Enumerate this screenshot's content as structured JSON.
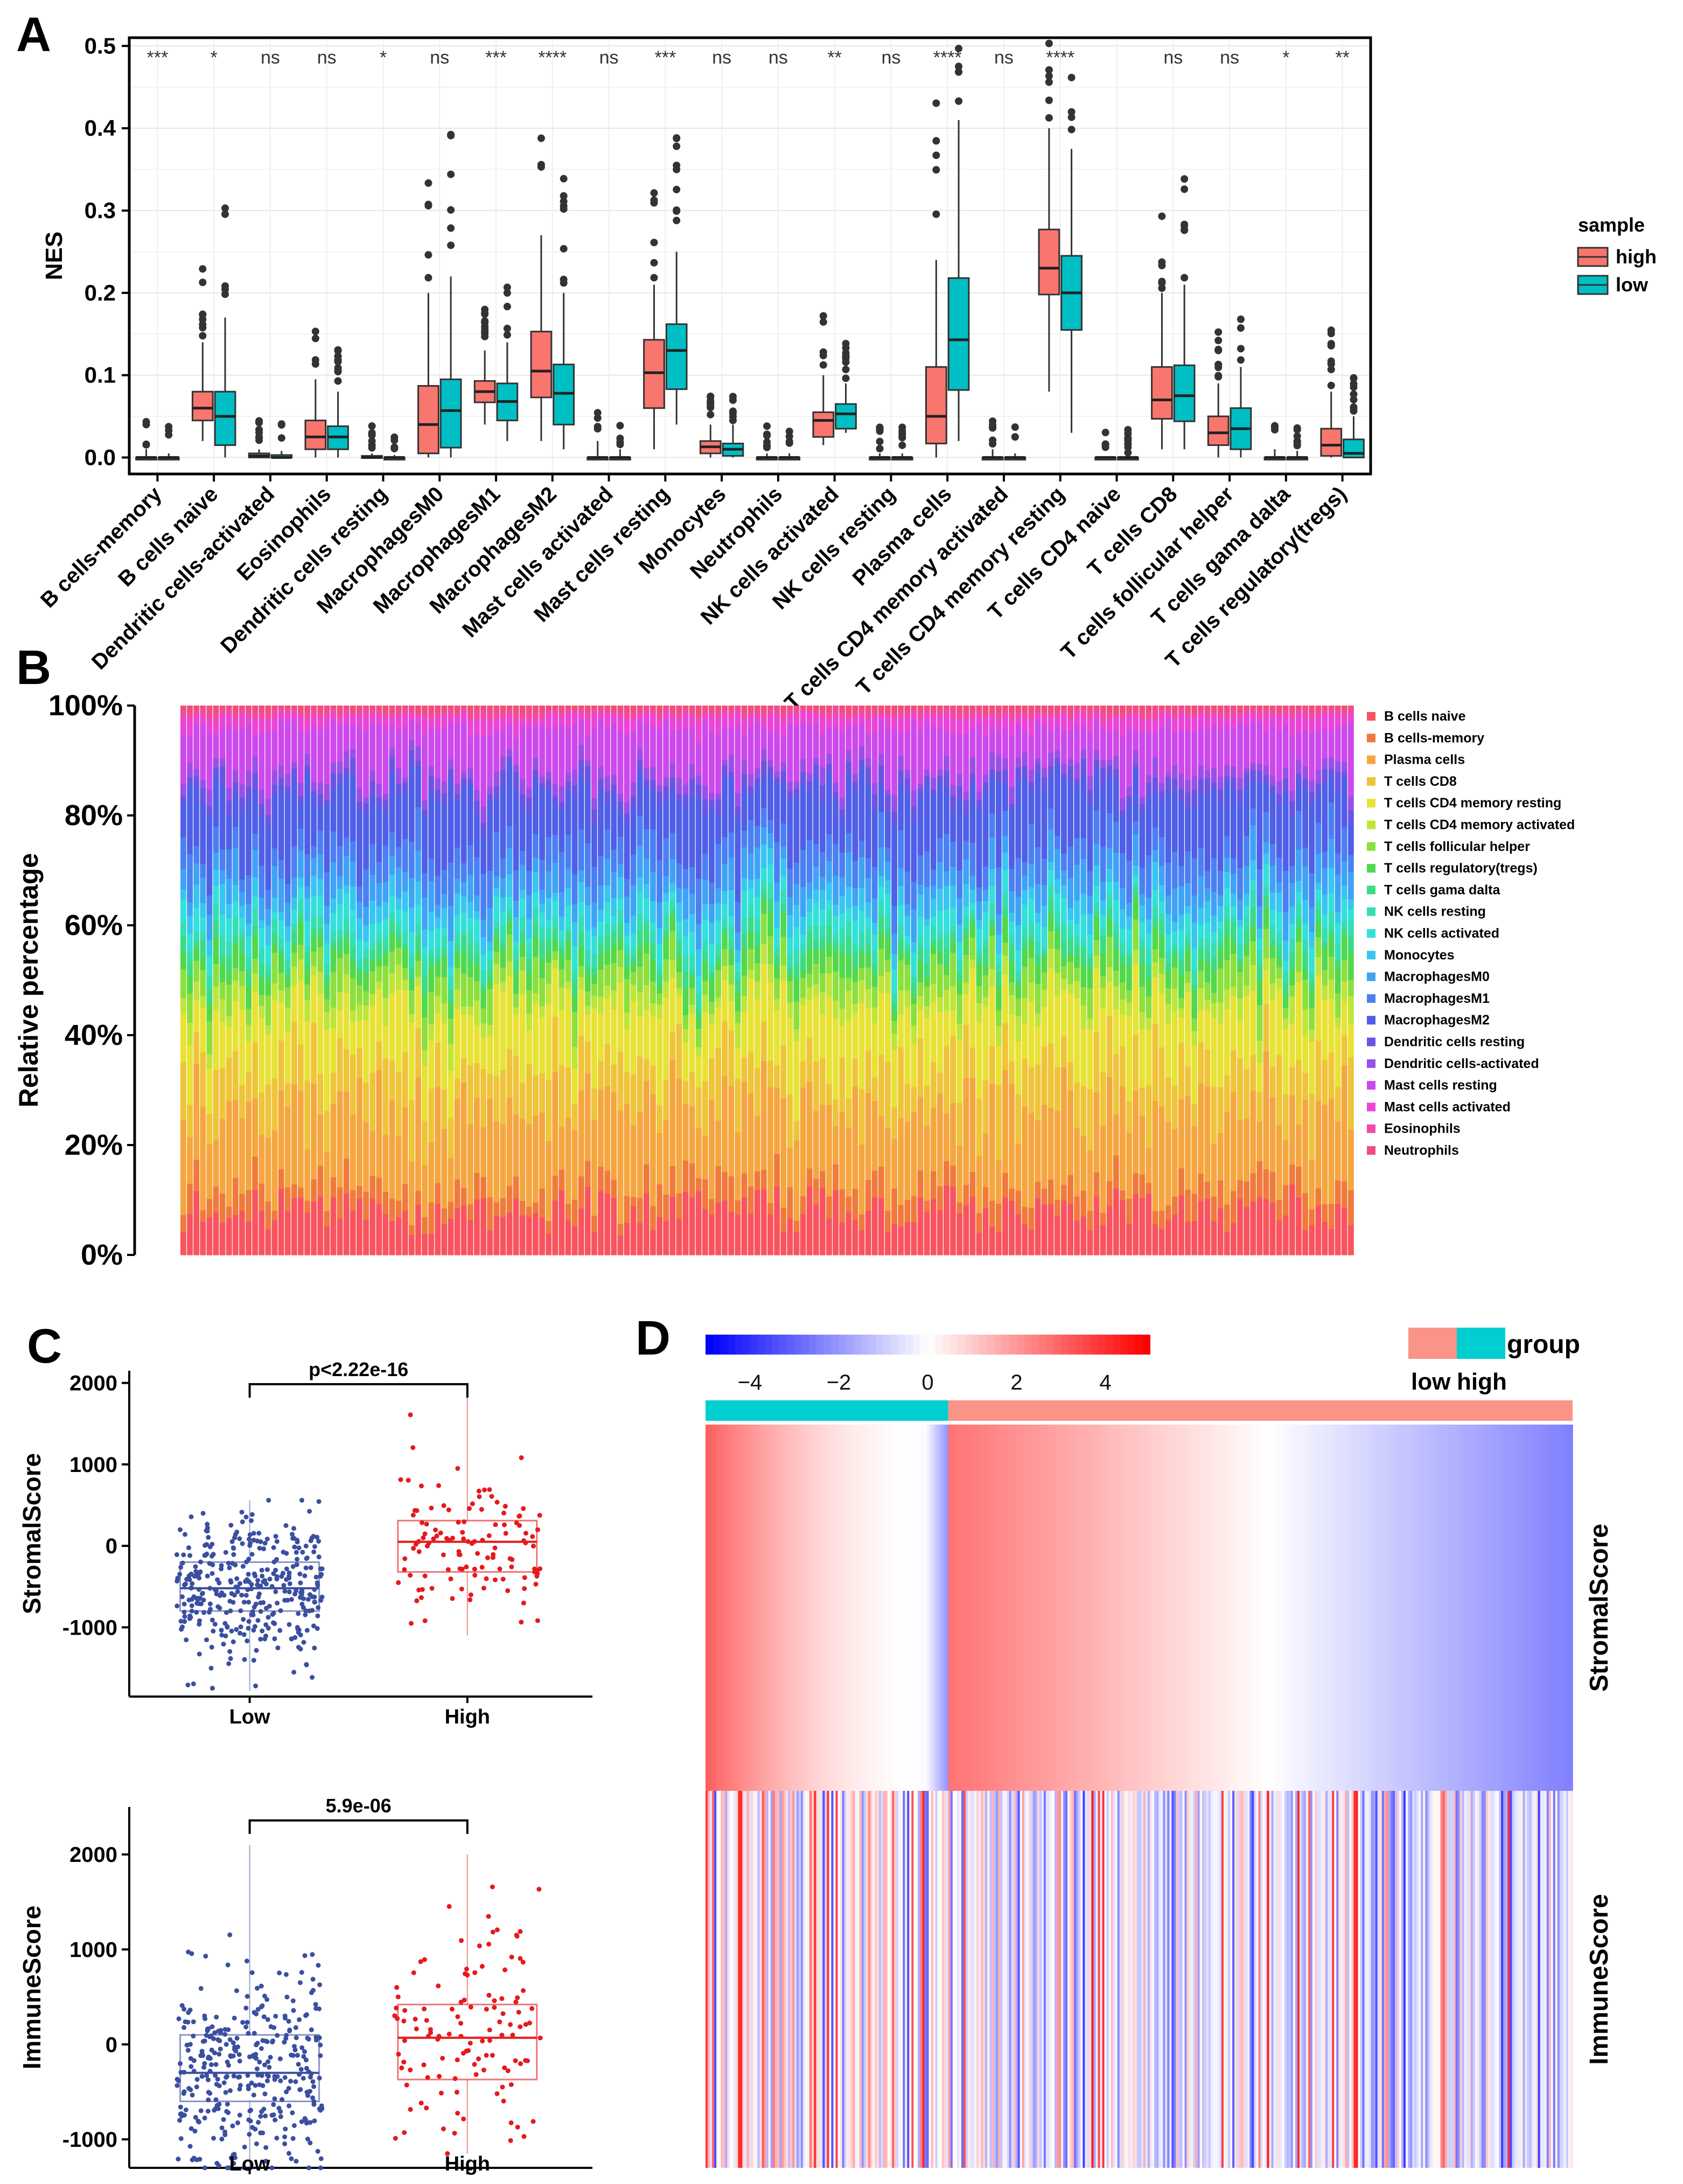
{
  "panels": {
    "a": "A",
    "b": "B",
    "c": "C",
    "d": "D"
  },
  "chart_data": [
    {
      "id": "A",
      "type": "box",
      "title": "",
      "ylabel": "NES",
      "ylim": [
        -0.02,
        0.51
      ],
      "yticks": [
        "0.0",
        "0.1",
        "0.2",
        "0.3",
        "0.4",
        "0.5"
      ],
      "legend": {
        "title": "sample",
        "entries": [
          {
            "name": "high",
            "color": "#F8766D"
          },
          {
            "name": "low",
            "color": "#00BFC4"
          }
        ],
        "position": "right"
      },
      "categories": [
        "B cells-memory",
        "B cells naive",
        "Dendritic cells-activated",
        "Eosinophils",
        "Dendritic cells resting",
        "MacrophagesM0",
        "MacrophagesM1",
        "MacrophagesM2",
        "Mast cells activated",
        "Mast cells resting",
        "Monocytes",
        "Neutrophils",
        "NK cells activated",
        "NK cells resting",
        "Plasma cells",
        "T cells CD4 memory activated",
        "T cells CD4 memory resting",
        "T cells CD4  naive",
        "T cells CD8",
        "T cells follicular helper",
        "T cells gama dalta",
        "T cells regulatory(tregs)"
      ],
      "significance": [
        "***",
        "*",
        "ns",
        "ns",
        "*",
        "ns",
        "***",
        "****",
        "ns",
        "***",
        "ns",
        "ns",
        "**",
        "ns",
        "****",
        "ns",
        "****",
        "",
        "ns",
        "ns",
        "*",
        "**"
      ],
      "series": [
        {
          "name": "high",
          "color": "#F8766D",
          "boxes": [
            [
              0,
              0,
              0,
              0,
              0.01
            ],
            [
              0.02,
              0.045,
              0.06,
              0.08,
              0.14
            ],
            [
              0,
              0,
              0.002,
              0.005,
              0.01
            ],
            [
              0,
              0.01,
              0.025,
              0.045,
              0.095
            ],
            [
              0,
              0,
              0,
              0.002,
              0.005
            ],
            [
              0,
              0.005,
              0.04,
              0.087,
              0.2
            ],
            [
              0.04,
              0.067,
              0.08,
              0.093,
              0.13
            ],
            [
              0.02,
              0.073,
              0.105,
              0.153,
              0.27
            ],
            [
              0,
              0,
              0,
              0,
              0.02
            ],
            [
              0.01,
              0.06,
              0.103,
              0.143,
              0.21
            ],
            [
              0,
              0.005,
              0.013,
              0.02,
              0.04
            ],
            [
              0,
              0,
              0,
              0,
              0.005
            ],
            [
              0.015,
              0.025,
              0.045,
              0.055,
              0.1
            ],
            [
              0,
              0,
              0,
              0,
              0.005
            ],
            [
              0,
              0.017,
              0.05,
              0.11,
              0.24
            ],
            [
              0,
              0,
              0,
              0,
              0.01
            ],
            [
              0.08,
              0.198,
              0.23,
              0.277,
              0.4
            ],
            [
              0,
              0,
              0,
              0,
              0
            ],
            [
              0.01,
              0.047,
              0.07,
              0.11,
              0.2
            ],
            [
              0,
              0.015,
              0.03,
              0.05,
              0.09
            ],
            [
              0,
              0,
              0,
              0,
              0.01
            ],
            [
              0,
              0.002,
              0.015,
              0.035,
              0.08
            ]
          ]
        },
        {
          "name": "low",
          "color": "#00BFC4",
          "boxes": [
            [
              0,
              0,
              0,
              0,
              0.005
            ],
            [
              0,
              0.015,
              0.05,
              0.08,
              0.17
            ],
            [
              0,
              0,
              0,
              0.003,
              0.008
            ],
            [
              0,
              0.01,
              0.025,
              0.038,
              0.08
            ],
            [
              0,
              0,
              0,
              0,
              0.003
            ],
            [
              0,
              0.012,
              0.057,
              0.095,
              0.22
            ],
            [
              0.02,
              0.045,
              0.068,
              0.09,
              0.14
            ],
            [
              0.01,
              0.04,
              0.078,
              0.113,
              0.2
            ],
            [
              0,
              0,
              0,
              0,
              0.01
            ],
            [
              0.04,
              0.083,
              0.13,
              0.162,
              0.25
            ],
            [
              0,
              0.002,
              0.01,
              0.017,
              0.04
            ],
            [
              0,
              0,
              0,
              0,
              0.005
            ],
            [
              0.03,
              0.035,
              0.053,
              0.065,
              0.09
            ],
            [
              0,
              0,
              0,
              0,
              0.005
            ],
            [
              0.02,
              0.082,
              0.143,
              0.218,
              0.41
            ],
            [
              0,
              0,
              0,
              0,
              0.005
            ],
            [
              0.03,
              0.155,
              0.2,
              0.245,
              0.375
            ],
            [
              0,
              0,
              0,
              0,
              0
            ],
            [
              0.01,
              0.044,
              0.075,
              0.112,
              0.21
            ],
            [
              0,
              0.01,
              0.035,
              0.06,
              0.11
            ],
            [
              0,
              0,
              0,
              0,
              0.008
            ],
            [
              0,
              0,
              0.005,
              0.022,
              0.05
            ]
          ]
        }
      ]
    },
    {
      "id": "B",
      "type": "stacked-bar",
      "ylabel": "Relative percentage",
      "yticks": [
        "0%",
        "20%",
        "40%",
        "60%",
        "80%",
        "100%"
      ],
      "sample_count": 180,
      "series": [
        {
          "name": "B cells naive",
          "color": "#F8545F",
          "mean_fraction": 0.08
        },
        {
          "name": "B cells-memory",
          "color": "#F07A3C",
          "mean_fraction": 0.04
        },
        {
          "name": "Plasma cells",
          "color": "#F5A640",
          "mean_fraction": 0.14
        },
        {
          "name": "T cells CD8",
          "color": "#EFC43A",
          "mean_fraction": 0.08
        },
        {
          "name": "T cells CD4 memory resting",
          "color": "#E8E236",
          "mean_fraction": 0.1
        },
        {
          "name": "T cells CD4 memory activated",
          "color": "#C0E53A",
          "mean_fraction": 0.03
        },
        {
          "name": "T cells follicular helper",
          "color": "#8CE03E",
          "mean_fraction": 0.04
        },
        {
          "name": "T cells regulatory(tregs)",
          "color": "#52D84C",
          "mean_fraction": 0.03
        },
        {
          "name": "T cells gama dalta",
          "color": "#3DDB86",
          "mean_fraction": 0.02
        },
        {
          "name": "NK cells resting",
          "color": "#35DEB3",
          "mean_fraction": 0.02
        },
        {
          "name": "NK cells activated",
          "color": "#34E0DA",
          "mean_fraction": 0.03
        },
        {
          "name": "Monocytes",
          "color": "#38C6F0",
          "mean_fraction": 0.03
        },
        {
          "name": "MacrophagesM0",
          "color": "#3FA3F5",
          "mean_fraction": 0.04
        },
        {
          "name": "MacrophagesM1",
          "color": "#4A80F2",
          "mean_fraction": 0.05
        },
        {
          "name": "MacrophagesM2",
          "color": "#4F5FE8",
          "mean_fraction": 0.1
        },
        {
          "name": "Dendritic cells resting",
          "color": "#6A55E3",
          "mean_fraction": 0.02
        },
        {
          "name": "Dendritic cells-activated",
          "color": "#9A4FE6",
          "mean_fraction": 0.02
        },
        {
          "name": "Mast cells resting",
          "color": "#CC49EC",
          "mean_fraction": 0.08
        },
        {
          "name": "Mast cells activated",
          "color": "#EB45D8",
          "mean_fraction": 0.02
        },
        {
          "name": "Eosinophils",
          "color": "#F04AA8",
          "mean_fraction": 0.01
        },
        {
          "name": "Neutrophils",
          "color": "#F04E7C",
          "mean_fraction": 0.01
        }
      ]
    },
    {
      "id": "C1",
      "type": "box-scatter",
      "ylabel": "StromalScore",
      "categories": [
        "Low",
        "High"
      ],
      "ylim": [
        -1850,
        2150
      ],
      "yticks": [
        "-1000",
        "0",
        "1000",
        "2000"
      ],
      "pvalue": "p<2.22e-16",
      "boxes": [
        {
          "group": "Low",
          "color": "#3B4FA0",
          "n": 350,
          "q1": -800,
          "median": -520,
          "q3": -200,
          "min": -1780,
          "max": 560
        },
        {
          "group": "High",
          "color": "#E41A1C",
          "n": 120,
          "q1": -320,
          "median": 50,
          "q3": 310,
          "min": -1100,
          "max": 1850
        }
      ]
    },
    {
      "id": "C2",
      "type": "box-scatter",
      "ylabel": "ImmuneScore",
      "categories": [
        "Low",
        "High"
      ],
      "ylim": [
        -1300,
        2500
      ],
      "yticks": [
        "-1000",
        "0",
        "1000",
        "2000"
      ],
      "pvalue": "5.9e-06",
      "boxes": [
        {
          "group": "Low",
          "color": "#3B4FA0",
          "n": 350,
          "q1": -600,
          "median": -300,
          "q3": 100,
          "min": -1300,
          "max": 2100
        },
        {
          "group": "High",
          "color": "#E41A1C",
          "n": 120,
          "q1": -370,
          "median": 70,
          "q3": 420,
          "min": -1150,
          "max": 2000
        }
      ]
    },
    {
      "id": "D",
      "type": "heatmap",
      "rows": [
        "StromalScore",
        "ImmuneScore"
      ],
      "colorbar": {
        "min": -5,
        "max": 5,
        "ticks": [
          "−4",
          "−2",
          "0",
          "2",
          "4"
        ],
        "low_color": "#0000FF",
        "mid_color": "#FFFFFF",
        "high_color": "#FF0000"
      },
      "group_legend": {
        "title": "group",
        "low_label": "low",
        "high_label": "high",
        "low_color": "#FA9388",
        "high_color": "#00CED1"
      },
      "group_split_fraction": 0.28
    }
  ]
}
